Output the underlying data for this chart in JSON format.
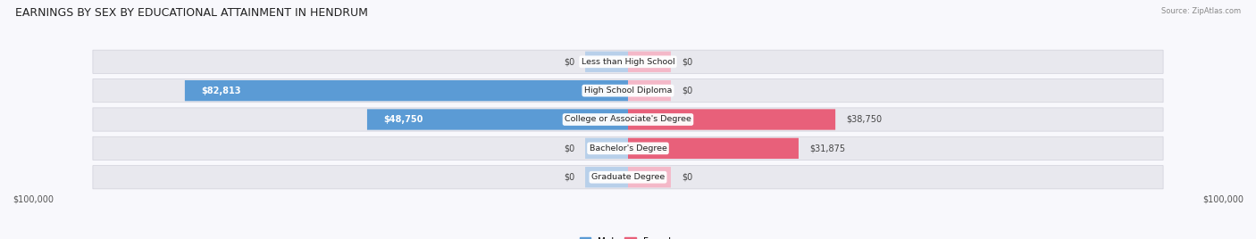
{
  "title": "EARNINGS BY SEX BY EDUCATIONAL ATTAINMENT IN HENDRUM",
  "source": "Source: ZipAtlas.com",
  "categories": [
    "Less than High School",
    "High School Diploma",
    "College or Associate's Degree",
    "Bachelor's Degree",
    "Graduate Degree"
  ],
  "male_values": [
    0,
    82813,
    48750,
    0,
    0
  ],
  "female_values": [
    0,
    0,
    38750,
    31875,
    0
  ],
  "male_stub": 8000,
  "female_stub": 8000,
  "male_color_full": "#5b9bd5",
  "male_color_stub": "#b8d0ea",
  "female_color_full": "#e8607a",
  "female_color_stub": "#f4b8c8",
  "row_bg": "#e8e8ee",
  "row_border": "#d0d0da",
  "max_val": 100000,
  "axis_label_left": "$100,000",
  "axis_label_right": "$100,000",
  "bg_color": "#f8f8fc",
  "title_fontsize": 9,
  "label_fontsize": 7,
  "val_fontsize": 7
}
